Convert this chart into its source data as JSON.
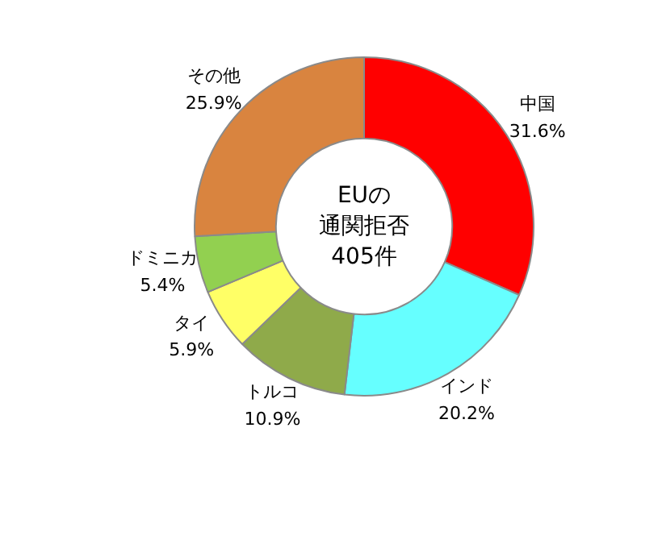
{
  "chart_data": {
    "type": "donut",
    "categories": [
      "中国",
      "インド",
      "トルコ",
      "タイ",
      "ドミニカ",
      "その他"
    ],
    "values": [
      31.6,
      20.2,
      10.9,
      5.9,
      5.4,
      25.9
    ],
    "colors": [
      "#ff0000",
      "#66ffff",
      "#8faa4a",
      "#ffff66",
      "#92d050",
      "#d9843f"
    ],
    "value_labels": [
      "31.6%",
      "20.2%",
      "10.9%",
      "5.9%",
      "5.4%",
      "25.9%"
    ],
    "annotations": [
      "EUの",
      "通関拒否",
      "405件"
    ]
  }
}
